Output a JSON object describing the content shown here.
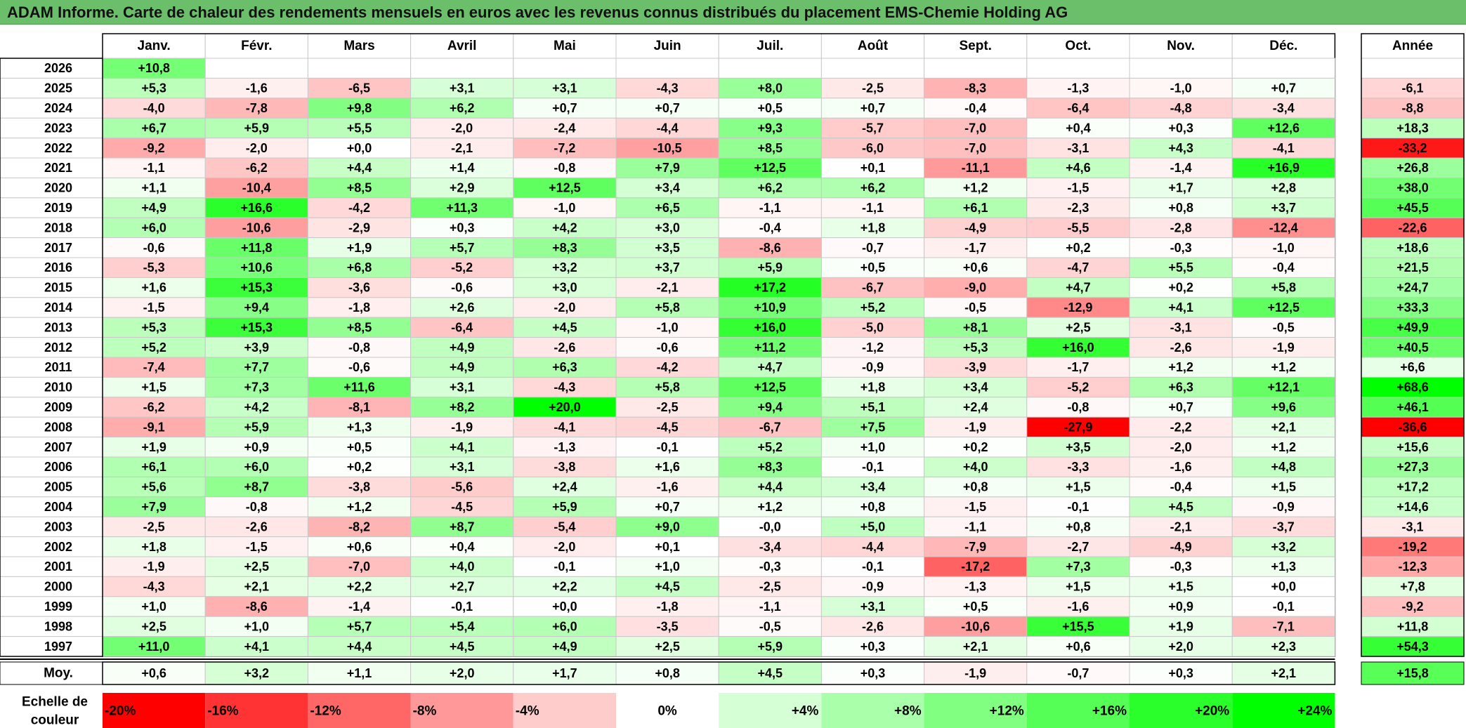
{
  "title": "ADAM Informe. Carte de chaleur des rendements mensuels en euros avec les revenus connus distribués du placement EMS-Chemie Holding AG",
  "chart_data": {
    "type": "heatmap",
    "title": "ADAM Informe. Carte de chaleur des rendements mensuels en euros avec les revenus connus distribués du placement EMS-Chemie Holding AG",
    "columns": [
      "Janv.",
      "Févr.",
      "Mars",
      "Avril",
      "Mai",
      "Juin",
      "Juil.",
      "Août",
      "Sept.",
      "Oct.",
      "Nov.",
      "Déc."
    ],
    "year_label": "Année",
    "rows": [
      {
        "year": "2026",
        "months": [
          "+10,8",
          "",
          "",
          "",
          "",
          "",
          "",
          "",
          "",
          "",
          "",
          ""
        ],
        "annual": ""
      },
      {
        "year": "2025",
        "months": [
          "+5,3",
          "-1,6",
          "-6,5",
          "+3,1",
          "+3,1",
          "-4,3",
          "+8,0",
          "-2,5",
          "-8,3",
          "-1,3",
          "-1,0",
          "+0,7"
        ],
        "annual": "-6,1"
      },
      {
        "year": "2024",
        "months": [
          "-4,0",
          "-7,8",
          "+9,8",
          "+6,2",
          "+0,7",
          "+0,7",
          "+0,5",
          "+0,7",
          "-0,4",
          "-6,4",
          "-4,8",
          "-3,4"
        ],
        "annual": "-8,8"
      },
      {
        "year": "2023",
        "months": [
          "+6,7",
          "+5,9",
          "+5,5",
          "-2,0",
          "-2,4",
          "-4,4",
          "+9,3",
          "-5,7",
          "-7,0",
          "+0,4",
          "+0,3",
          "+12,6"
        ],
        "annual": "+18,3"
      },
      {
        "year": "2022",
        "months": [
          "-9,2",
          "-2,0",
          "+0,0",
          "-2,1",
          "-7,2",
          "-10,5",
          "+8,5",
          "-6,0",
          "-7,0",
          "-3,1",
          "+4,3",
          "-4,1"
        ],
        "annual": "-33,2"
      },
      {
        "year": "2021",
        "months": [
          "-1,1",
          "-6,2",
          "+4,4",
          "+1,4",
          "-0,8",
          "+7,9",
          "+12,5",
          "+0,1",
          "-11,1",
          "+4,6",
          "-1,4",
          "+16,9"
        ],
        "annual": "+26,8"
      },
      {
        "year": "2020",
        "months": [
          "+1,1",
          "-10,4",
          "+8,5",
          "+2,9",
          "+12,5",
          "+3,4",
          "+6,2",
          "+6,2",
          "+1,2",
          "-1,5",
          "+1,7",
          "+2,8"
        ],
        "annual": "+38,0"
      },
      {
        "year": "2019",
        "months": [
          "+4,9",
          "+16,6",
          "-4,2",
          "+11,3",
          "-1,0",
          "+6,5",
          "-1,1",
          "-1,1",
          "+6,1",
          "-2,3",
          "+0,8",
          "+3,7"
        ],
        "annual": "+45,5"
      },
      {
        "year": "2018",
        "months": [
          "+6,0",
          "-10,6",
          "-2,9",
          "+0,3",
          "+4,2",
          "+3,0",
          "-0,4",
          "+1,8",
          "-4,9",
          "-5,5",
          "-2,8",
          "-12,4"
        ],
        "annual": "-22,6"
      },
      {
        "year": "2017",
        "months": [
          "-0,6",
          "+11,8",
          "+1,9",
          "+5,7",
          "+8,3",
          "+3,5",
          "-8,6",
          "-0,7",
          "-1,7",
          "+0,2",
          "-0,3",
          "-1,0"
        ],
        "annual": "+18,6"
      },
      {
        "year": "2016",
        "months": [
          "-5,3",
          "+10,6",
          "+6,8",
          "-5,2",
          "+3,2",
          "+3,7",
          "+5,9",
          "+0,5",
          "+0,6",
          "-4,7",
          "+5,5",
          "-0,4"
        ],
        "annual": "+21,5"
      },
      {
        "year": "2015",
        "months": [
          "+1,6",
          "+15,3",
          "-3,6",
          "-0,6",
          "+3,0",
          "-2,1",
          "+17,2",
          "-6,7",
          "-9,0",
          "+4,7",
          "+0,2",
          "+5,8"
        ],
        "annual": "+24,7"
      },
      {
        "year": "2014",
        "months": [
          "-1,5",
          "+9,4",
          "-1,8",
          "+2,6",
          "-2,0",
          "+5,8",
          "+10,9",
          "+5,2",
          "-0,5",
          "-12,9",
          "+4,1",
          "+12,5"
        ],
        "annual": "+33,3"
      },
      {
        "year": "2013",
        "months": [
          "+5,3",
          "+15,3",
          "+8,5",
          "-6,4",
          "+4,5",
          "-1,0",
          "+16,0",
          "-5,0",
          "+8,1",
          "+2,5",
          "-3,1",
          "-0,5"
        ],
        "annual": "+49,9"
      },
      {
        "year": "2012",
        "months": [
          "+5,2",
          "+3,9",
          "-0,8",
          "+4,9",
          "-2,6",
          "-0,6",
          "+11,2",
          "-1,2",
          "+5,3",
          "+16,0",
          "-2,6",
          "-1,9"
        ],
        "annual": "+40,5"
      },
      {
        "year": "2011",
        "months": [
          "-7,4",
          "+7,7",
          "-0,6",
          "+4,9",
          "+6,3",
          "-4,2",
          "+4,7",
          "-0,9",
          "-3,9",
          "-1,7",
          "+1,2",
          "+1,2"
        ],
        "annual": "+6,6"
      },
      {
        "year": "2010",
        "months": [
          "+1,5",
          "+7,3",
          "+11,6",
          "+3,1",
          "-4,3",
          "+5,8",
          "+12,5",
          "+1,8",
          "+3,4",
          "-5,2",
          "+6,3",
          "+12,1"
        ],
        "annual": "+68,6"
      },
      {
        "year": "2009",
        "months": [
          "-6,2",
          "+4,2",
          "-8,1",
          "+8,2",
          "+20,0",
          "-2,5",
          "+9,4",
          "+5,1",
          "+2,4",
          "-0,8",
          "+0,7",
          "+9,6"
        ],
        "annual": "+46,1"
      },
      {
        "year": "2008",
        "months": [
          "-9,1",
          "+5,9",
          "+1,3",
          "-1,9",
          "-4,1",
          "-4,5",
          "-6,7",
          "+7,5",
          "-1,9",
          "-27,9",
          "-2,2",
          "+2,1"
        ],
        "annual": "-36,6"
      },
      {
        "year": "2007",
        "months": [
          "+1,9",
          "+0,9",
          "+0,5",
          "+4,1",
          "-1,3",
          "-0,1",
          "+5,2",
          "+1,0",
          "+0,2",
          "+3,5",
          "-2,0",
          "+1,2"
        ],
        "annual": "+15,6"
      },
      {
        "year": "2006",
        "months": [
          "+6,1",
          "+6,0",
          "+0,2",
          "+3,1",
          "-3,8",
          "+1,6",
          "+8,3",
          "-0,1",
          "+4,0",
          "-3,3",
          "-1,6",
          "+4,8"
        ],
        "annual": "+27,3"
      },
      {
        "year": "2005",
        "months": [
          "+5,6",
          "+8,7",
          "-3,8",
          "-5,6",
          "+2,4",
          "-1,6",
          "+4,4",
          "+3,4",
          "+0,8",
          "+1,5",
          "-0,4",
          "+1,5"
        ],
        "annual": "+17,2"
      },
      {
        "year": "2004",
        "months": [
          "+7,9",
          "-0,8",
          "+1,2",
          "-4,5",
          "+5,9",
          "+0,7",
          "+1,2",
          "+0,8",
          "-1,5",
          "-0,1",
          "+4,5",
          "-0,9"
        ],
        "annual": "+14,6"
      },
      {
        "year": "2003",
        "months": [
          "-2,5",
          "-2,6",
          "-8,2",
          "+8,7",
          "-5,4",
          "+9,0",
          "-0,0",
          "+5,0",
          "-1,1",
          "+0,8",
          "-2,1",
          "-3,7"
        ],
        "annual": "-3,1"
      },
      {
        "year": "2002",
        "months": [
          "+1,8",
          "-1,5",
          "+0,6",
          "+0,4",
          "-2,0",
          "+0,1",
          "-3,4",
          "-4,4",
          "-7,9",
          "-2,7",
          "-4,9",
          "+3,2"
        ],
        "annual": "-19,2"
      },
      {
        "year": "2001",
        "months": [
          "-1,9",
          "+2,5",
          "-7,0",
          "+4,0",
          "-0,1",
          "+1,0",
          "-0,3",
          "-0,1",
          "-17,2",
          "+7,3",
          "-0,3",
          "+1,3"
        ],
        "annual": "-12,3"
      },
      {
        "year": "2000",
        "months": [
          "-4,3",
          "+2,1",
          "+2,2",
          "+2,7",
          "+2,2",
          "+4,5",
          "-2,5",
          "-0,9",
          "-1,3",
          "+1,5",
          "+1,5",
          "+0,0"
        ],
        "annual": "+7,8"
      },
      {
        "year": "1999",
        "months": [
          "+1,0",
          "-8,6",
          "-1,4",
          "-0,1",
          "+0,0",
          "-1,8",
          "-1,1",
          "+3,1",
          "+0,5",
          "-1,6",
          "+0,9",
          "-0,1"
        ],
        "annual": "-9,2"
      },
      {
        "year": "1998",
        "months": [
          "+2,5",
          "+1,0",
          "+5,7",
          "+5,4",
          "+6,0",
          "-3,5",
          "-0,5",
          "-2,6",
          "-10,6",
          "+15,5",
          "+1,9",
          "-7,1"
        ],
        "annual": "+11,8"
      },
      {
        "year": "1997",
        "months": [
          "+11,0",
          "+4,1",
          "+4,4",
          "+4,5",
          "+4,9",
          "+2,5",
          "+5,9",
          "+0,3",
          "+2,1",
          "+0,6",
          "+2,0",
          "+2,3"
        ],
        "annual": "+54,3"
      }
    ],
    "average": {
      "label": "Moy.",
      "months": [
        "+0,6",
        "+3,2",
        "+1,1",
        "+2,0",
        "+1,7",
        "+0,8",
        "+4,5",
        "+0,3",
        "-1,9",
        "-0,7",
        "+0,3",
        "+2,1"
      ],
      "annual": "+15,8"
    },
    "scale": {
      "label_lines": [
        "Echelle de",
        "couleur"
      ],
      "values": [
        -20,
        -16,
        -12,
        -8,
        -4,
        0,
        4,
        8,
        12,
        16,
        20,
        24
      ],
      "labels": [
        "-20%",
        "-16%",
        "-12%",
        "-8%",
        "-4%",
        "0%",
        "+4%",
        "+8%",
        "+12%",
        "+16%",
        "+20%",
        "+24%"
      ]
    },
    "colors": {
      "negative_max": "#ff0000",
      "positive_max": "#00ff00",
      "neutral": "#ffffff",
      "header": "#ffffff",
      "title_bar": "#6bbf6b"
    }
  }
}
